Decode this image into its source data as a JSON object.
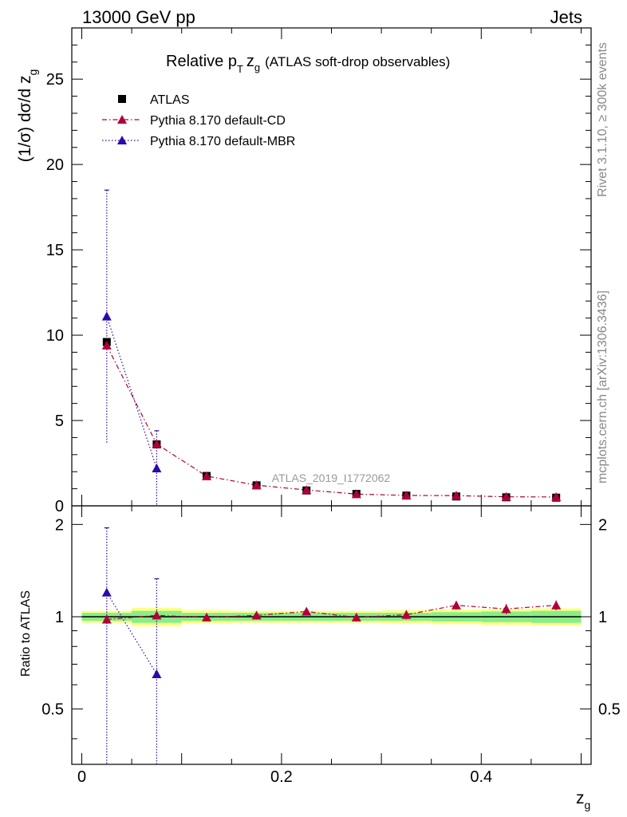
{
  "header": {
    "left": "13000 GeV pp",
    "right": "Jets"
  },
  "side_labels": {
    "rivet": "Rivet 3.1.10, ≥ 300k events",
    "mcplots": "mcplots.cern.ch [arXiv:1306.3436]"
  },
  "colors": {
    "atlas": "#000000",
    "cd": "#b0003a",
    "mbr": "#2a0aa8",
    "band_outer": "#ffff88",
    "band_inner": "#88ee88"
  },
  "chart_data": [
    {
      "type": "scatter",
      "title": "Relative p_T z_g (ATLAS soft-drop observables)",
      "title_parts": {
        "main": "Relative p",
        "sub_T": "T",
        "z": "z",
        "sub_g": "g",
        "paren": "(ATLAS soft-drop observables)"
      },
      "ylabel": "(1/σ) dσ/d z_g",
      "ylabel_parts": {
        "main": "(1/σ) dσ/d z",
        "sub": "g"
      },
      "watermark": "ATLAS_2019_I1772062",
      "xlim": [
        -0.01,
        0.51
      ],
      "ylim": [
        0,
        28
      ],
      "yticks": [
        0,
        5,
        10,
        15,
        20,
        25
      ],
      "legend_position": "top-left",
      "x": [
        0.025,
        0.075,
        0.125,
        0.175,
        0.225,
        0.275,
        0.325,
        0.375,
        0.425,
        0.475
      ],
      "series": [
        {
          "name": "ATLAS",
          "marker": "square",
          "values": [
            9.6,
            3.6,
            1.75,
            1.2,
            0.9,
            0.7,
            0.6,
            0.55,
            0.5,
            0.48
          ]
        },
        {
          "name": "Pythia 8.170 default-CD",
          "marker": "triangle",
          "linestyle": "dash-dot",
          "values": [
            9.4,
            3.62,
            1.74,
            1.21,
            0.93,
            0.69,
            0.61,
            0.6,
            0.53,
            0.52
          ]
        },
        {
          "name": "Pythia 8.170 default-MBR",
          "marker": "triangle",
          "linestyle": "dotted",
          "values": [
            11.1,
            2.2
          ],
          "errors_up": [
            18.5,
            4.4
          ],
          "errors_down": [
            3.7,
            0.0
          ]
        }
      ]
    },
    {
      "type": "scatter",
      "ylabel": "Ratio to ATLAS",
      "xlabel": "z_g",
      "xlabel_parts": {
        "main": "z",
        "sub": "g"
      },
      "xlim": [
        -0.01,
        0.51
      ],
      "ylim": [
        0.33,
        2.3
      ],
      "yticks": [
        0.5,
        1,
        2
      ],
      "ytick_labels": [
        "0.5",
        "1",
        "2"
      ],
      "xticks": [
        0,
        0.2,
        0.4
      ],
      "xtick_labels": [
        "0",
        "0.2",
        "0.4"
      ],
      "x": [
        0.025,
        0.075,
        0.125,
        0.175,
        0.225,
        0.275,
        0.325,
        0.375,
        0.425,
        0.475
      ],
      "band_outer": [
        0.045,
        0.07,
        0.05,
        0.045,
        0.045,
        0.045,
        0.05,
        0.055,
        0.06,
        0.065
      ],
      "band_inner": [
        0.03,
        0.045,
        0.03,
        0.03,
        0.03,
        0.03,
        0.03,
        0.035,
        0.04,
        0.045
      ],
      "series": [
        {
          "name": "Pythia 8.170 default-CD",
          "values": [
            0.98,
            1.01,
            0.995,
            1.01,
            1.04,
            0.995,
            1.015,
            1.09,
            1.06,
            1.09
          ],
          "errors": [
            0.02,
            0.03,
            0.025,
            0.03,
            0.03,
            0.03,
            0.035,
            0.035,
            0.04,
            0.04
          ]
        },
        {
          "name": "Pythia 8.170 default-MBR",
          "values": [
            1.2,
            0.65
          ],
          "errors_up": [
            1.95,
            1.33
          ],
          "errors_down": [
            0.2,
            0.2
          ]
        }
      ]
    }
  ]
}
